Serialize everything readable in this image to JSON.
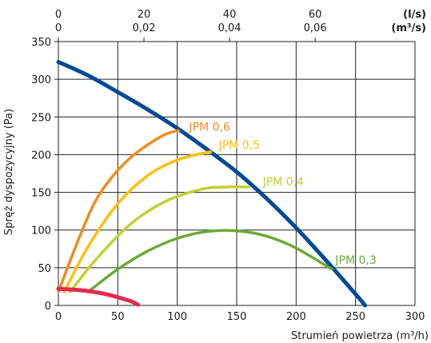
{
  "chart_data": {
    "type": "line",
    "xlabel": "Strumień powietrza (m³/h)",
    "ylabel": "Spręż dyspozycyjny (Pa)",
    "xlim": [
      0,
      300
    ],
    "ylim": [
      0,
      350
    ],
    "x_ticks": [
      0,
      50,
      100,
      150,
      200,
      250,
      300
    ],
    "y_ticks": [
      0,
      50,
      100,
      150,
      200,
      250,
      300,
      350
    ],
    "grid": true,
    "top_axis": {
      "flow_ls_ticks": [
        "0",
        "20",
        "40",
        "60"
      ],
      "flow_m3s_ticks": [
        "0",
        "0,02",
        "0,04",
        "0,06"
      ],
      "flow_ls_values": [
        0,
        20,
        40,
        60
      ],
      "unit_ls": "(l/s)",
      "unit_m3s": "(m³/s)"
    },
    "series": [
      {
        "name": "",
        "color": "#004a96",
        "x": [
          0,
          25,
          50,
          75,
          100,
          125,
          150,
          175,
          200,
          225,
          250,
          258
        ],
        "y": [
          323,
          305,
          283,
          260,
          235,
          207,
          177,
          142,
          103,
          60,
          15,
          0
        ]
      },
      {
        "name": "JPM 0,6",
        "color": "#f08c1e",
        "label_at": [
          110,
          232
        ],
        "x": [
          0,
          15,
          30,
          45,
          60,
          75,
          90,
          101
        ],
        "y": [
          18,
          80,
          135,
          170,
          195,
          213,
          227,
          232
        ]
      },
      {
        "name": "JPM 0,5",
        "color": "#fec00f",
        "label_at": [
          135,
          208
        ],
        "x": [
          5,
          25,
          50,
          75,
          100,
          125,
          128
        ],
        "y": [
          18,
          78,
          135,
          172,
          193,
          203,
          203
        ]
      },
      {
        "name": "JPM 0,4",
        "color": "#bfd230",
        "label_at": [
          172,
          159
        ],
        "x": [
          10,
          30,
          60,
          90,
          120,
          140,
          160
        ],
        "y": [
          18,
          58,
          107,
          138,
          154,
          157,
          157
        ]
      },
      {
        "name": "JPM 0,3",
        "color": "#6aaa35",
        "label_at": [
          233,
          55
        ],
        "x": [
          25,
          50,
          75,
          100,
          125,
          150,
          175,
          200,
          230
        ],
        "y": [
          18,
          48,
          72,
          89,
          98,
          99,
          92,
          76,
          48
        ]
      },
      {
        "name": "",
        "color": "#e3294f",
        "x": [
          0,
          20,
          40,
          60,
          67
        ],
        "y": [
          22,
          20,
          15,
          6,
          1
        ]
      }
    ]
  }
}
